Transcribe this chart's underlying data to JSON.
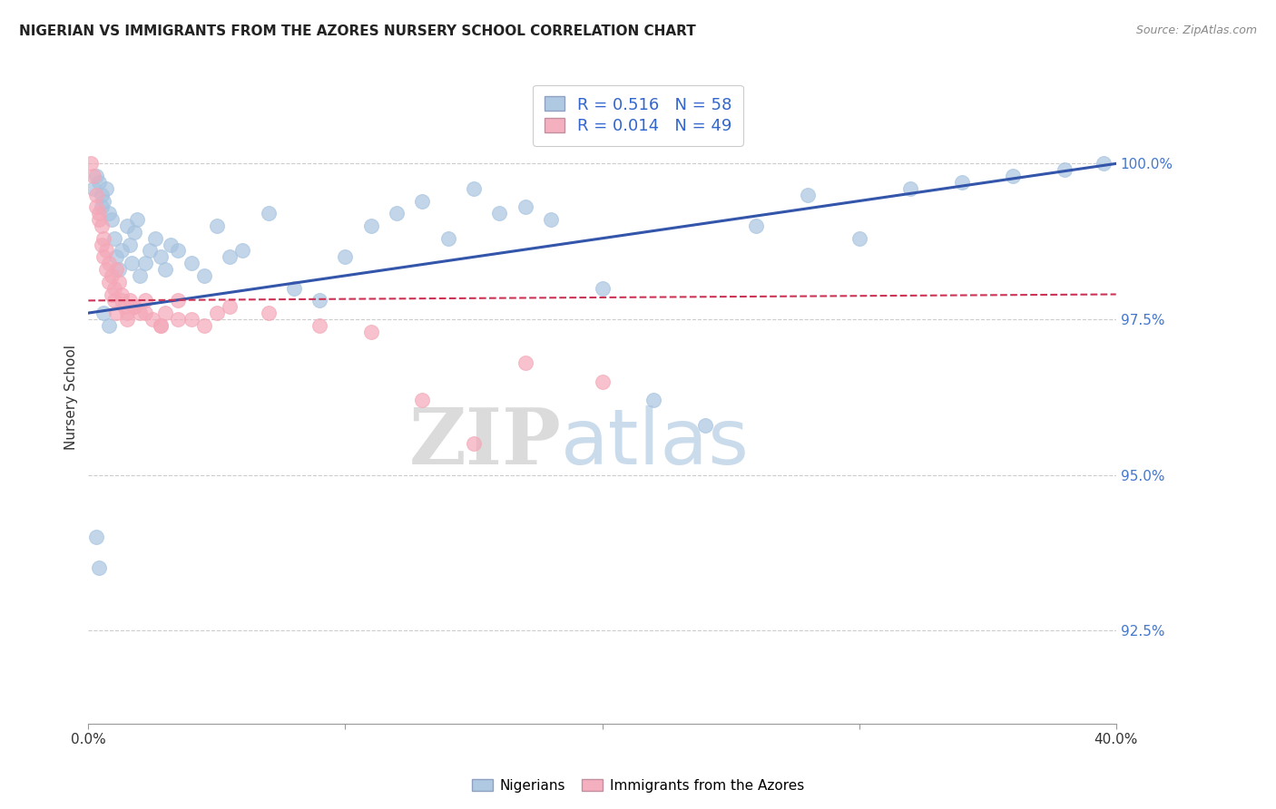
{
  "title": "NIGERIAN VS IMMIGRANTS FROM THE AZORES NURSERY SCHOOL CORRELATION CHART",
  "source": "Source: ZipAtlas.com",
  "ylabel": "Nursery School",
  "right_yticks": [
    100.0,
    97.5,
    95.0,
    92.5
  ],
  "right_ytick_labels": [
    "100.0%",
    "97.5%",
    "95.0%",
    "92.5%"
  ],
  "xmin": 0.0,
  "xmax": 40.0,
  "ymin": 91.0,
  "ymax": 101.5,
  "blue_color": "#A8C4E0",
  "pink_color": "#F4A8B8",
  "trend_blue_color": "#3355AA",
  "trend_pink_color": "#CC3355",
  "legend_R_blue": "0.516",
  "legend_N_blue": "58",
  "legend_R_pink": "0.014",
  "legend_N_pink": "49",
  "legend_label_blue": "Nigerians",
  "legend_label_pink": "Immigrants from the Azores",
  "watermark_zip": "ZIP",
  "watermark_atlas": "atlas",
  "blue_x": [
    0.2,
    0.3,
    0.4,
    0.5,
    0.5,
    0.6,
    0.7,
    0.8,
    0.9,
    1.0,
    1.1,
    1.2,
    1.3,
    1.5,
    1.6,
    1.7,
    1.8,
    1.9,
    2.0,
    2.2,
    2.4,
    2.6,
    2.8,
    3.0,
    3.2,
    3.5,
    4.0,
    4.5,
    5.0,
    5.5,
    6.0,
    7.0,
    8.0,
    9.0,
    10.0,
    11.0,
    12.0,
    13.0,
    14.0,
    15.0,
    16.0,
    17.0,
    18.0,
    20.0,
    22.0,
    24.0,
    26.0,
    28.0,
    30.0,
    32.0,
    34.0,
    36.0,
    38.0,
    39.5,
    0.3,
    0.4,
    0.6,
    0.8
  ],
  "blue_y": [
    99.6,
    99.8,
    99.7,
    99.5,
    99.3,
    99.4,
    99.6,
    99.2,
    99.1,
    98.8,
    98.5,
    98.3,
    98.6,
    99.0,
    98.7,
    98.4,
    98.9,
    99.1,
    98.2,
    98.4,
    98.6,
    98.8,
    98.5,
    98.3,
    98.7,
    98.6,
    98.4,
    98.2,
    99.0,
    98.5,
    98.6,
    99.2,
    98.0,
    97.8,
    98.5,
    99.0,
    99.2,
    99.4,
    98.8,
    99.6,
    99.2,
    99.3,
    99.1,
    98.0,
    96.2,
    95.8,
    99.0,
    99.5,
    98.8,
    99.6,
    99.7,
    99.8,
    99.9,
    100.0,
    94.0,
    93.5,
    97.6,
    97.4
  ],
  "pink_x": [
    0.1,
    0.2,
    0.3,
    0.4,
    0.5,
    0.6,
    0.7,
    0.8,
    0.9,
    1.0,
    1.1,
    1.2,
    1.3,
    1.4,
    1.5,
    1.6,
    1.8,
    2.0,
    2.2,
    2.5,
    2.8,
    3.0,
    3.5,
    4.0,
    4.5,
    5.0,
    0.3,
    0.4,
    0.5,
    0.6,
    0.7,
    0.8,
    0.9,
    1.0,
    1.1,
    1.3,
    1.5,
    1.8,
    2.2,
    2.8,
    3.5,
    5.5,
    7.0,
    9.0,
    11.0,
    13.0,
    15.0,
    17.0,
    20.0
  ],
  "pink_y": [
    100.0,
    99.8,
    99.5,
    99.2,
    99.0,
    98.8,
    98.6,
    98.4,
    98.2,
    98.0,
    98.3,
    98.1,
    97.9,
    97.7,
    97.6,
    97.8,
    97.7,
    97.6,
    97.8,
    97.5,
    97.4,
    97.6,
    97.8,
    97.5,
    97.4,
    97.6,
    99.3,
    99.1,
    98.7,
    98.5,
    98.3,
    98.1,
    97.9,
    97.8,
    97.6,
    97.8,
    97.5,
    97.7,
    97.6,
    97.4,
    97.5,
    97.7,
    97.6,
    97.4,
    97.3,
    96.2,
    95.5,
    96.8,
    96.5
  ],
  "blue_trend_x0": 0.0,
  "blue_trend_y0": 97.6,
  "blue_trend_x1": 40.0,
  "blue_trend_y1": 100.0,
  "pink_trend_x0": 0.0,
  "pink_trend_y0": 97.8,
  "pink_trend_x1": 40.0,
  "pink_trend_y1": 97.9
}
